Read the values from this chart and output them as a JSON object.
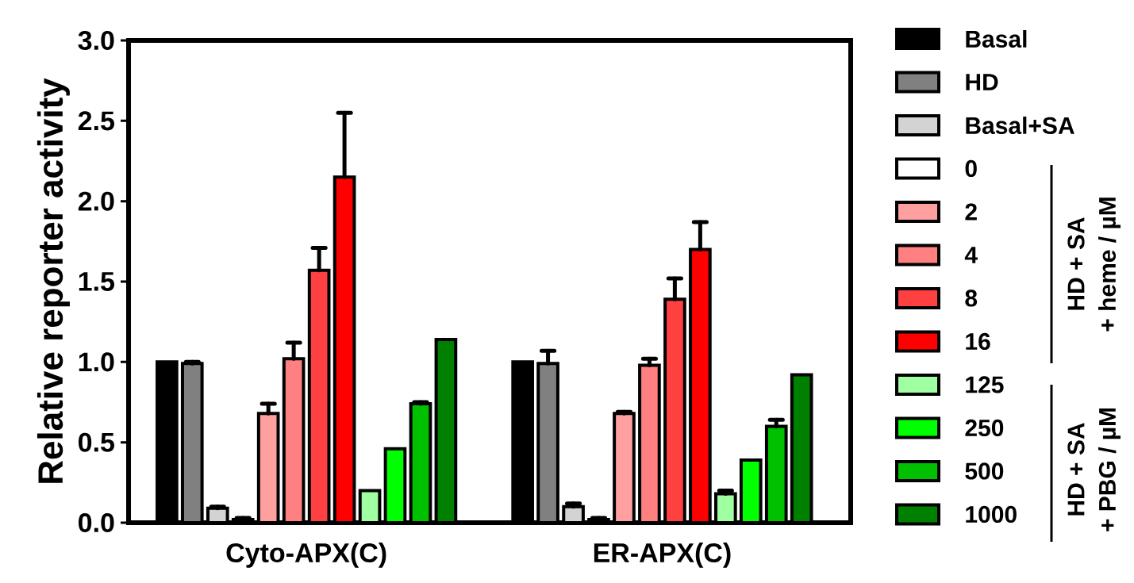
{
  "chart_data": {
    "type": "bar",
    "ylabel": "Relative reporter activity",
    "categories": [
      "Cyto-APX(C)",
      "ER-APX(C)"
    ],
    "ylim": [
      0,
      3
    ],
    "yticks": [
      {
        "value": 0,
        "label": "0.0"
      },
      {
        "value": 0.5,
        "label": "0.5"
      },
      {
        "value": 1,
        "label": "1.0"
      },
      {
        "value": 1.5,
        "label": "1.5"
      },
      {
        "value": 2,
        "label": "2.0"
      },
      {
        "value": 2.5,
        "label": "2.5"
      },
      {
        "value": 3,
        "label": "3.0"
      }
    ],
    "legend": "right",
    "series": [
      {
        "name": "Basal",
        "color": "#000000",
        "values": [
          1.0,
          1.0
        ]
      },
      {
        "name": "HD",
        "color": "#808080",
        "values": [
          0.99,
          0.99
        ],
        "errors": [
          [
            0.99,
            1.0
          ],
          [
            0.99,
            1.07
          ]
        ]
      },
      {
        "name": "Basal+SA",
        "color": "#d3d3d3",
        "values": [
          0.09,
          0.1
        ],
        "errors": [
          [
            0.09,
            0.1
          ],
          [
            0.1,
            0.12
          ]
        ]
      },
      {
        "name": "0",
        "color": "#ffffff",
        "values": [
          0.02,
          0.02
        ],
        "errors": [
          [
            0.02,
            0.03
          ],
          [
            0.02,
            0.03
          ]
        ]
      },
      {
        "name": "2",
        "color": "#ffa0a0",
        "values": [
          0.68,
          0.68
        ],
        "errors": [
          [
            0.68,
            0.74
          ],
          [
            0.68,
            0.69
          ]
        ]
      },
      {
        "name": "4",
        "color": "#ff8080",
        "values": [
          1.02,
          0.98
        ],
        "errors": [
          [
            1.02,
            1.12
          ],
          [
            0.98,
            1.02
          ]
        ]
      },
      {
        "name": "8",
        "color": "#ff4040",
        "values": [
          1.57,
          1.39
        ],
        "errors": [
          [
            1.57,
            1.71
          ],
          [
            1.39,
            1.52
          ]
        ]
      },
      {
        "name": "16",
        "color": "#ff0000",
        "values": [
          2.15,
          1.7
        ],
        "errors": [
          [
            2.15,
            2.55
          ],
          [
            1.7,
            1.87
          ]
        ]
      },
      {
        "name": "125",
        "color": "#a0ffa0",
        "values": [
          0.2,
          0.18
        ],
        "errors": [
          null,
          [
            0.18,
            0.2
          ]
        ]
      },
      {
        "name": "250",
        "color": "#00ff00",
        "values": [
          0.46,
          0.39
        ]
      },
      {
        "name": "500",
        "color": "#00c000",
        "values": [
          0.74,
          0.6
        ],
        "errors": [
          [
            0.74,
            0.75
          ],
          [
            0.6,
            0.64
          ]
        ]
      },
      {
        "name": "1000",
        "color": "#008000",
        "values": [
          1.14,
          0.92
        ]
      }
    ],
    "annotations": [
      "HD + SA",
      "+ heme / µM",
      "HD + SA",
      "+ PBG / µM"
    ]
  }
}
